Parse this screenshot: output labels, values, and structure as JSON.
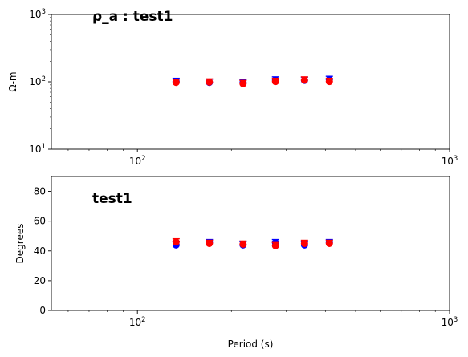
{
  "chart_data": [
    {
      "type": "scatter",
      "title": "ρ_a : test1",
      "xlabel": "",
      "ylabel": "Ω-m",
      "xscale": "log",
      "yscale": "log",
      "xlim": [
        53,
        1000
      ],
      "ylim": [
        10,
        1000
      ],
      "x_ticks": [
        {
          "value": 100,
          "base": "10",
          "exp": "2"
        },
        {
          "value": 1000,
          "base": "10",
          "exp": "3"
        }
      ],
      "y_ticks": [
        {
          "value": 10,
          "base": "10",
          "exp": "1"
        },
        {
          "value": 100,
          "base": "10",
          "exp": "2"
        },
        {
          "value": 1000,
          "base": "10",
          "exp": "3"
        }
      ],
      "series": [
        {
          "color": "#0000ff",
          "x": [
            133,
            170,
            218,
            277,
            343,
            412
          ],
          "y": [
            101,
            98,
            97,
            106,
            105,
            108
          ]
        },
        {
          "color": "#ff0000",
          "x": [
            133,
            170,
            218,
            277,
            343,
            412
          ],
          "y": [
            98,
            99,
            94,
            101,
            106,
            101
          ]
        }
      ]
    },
    {
      "type": "scatter",
      "title": "test1",
      "xlabel": "Period (s)",
      "ylabel": "Degrees",
      "xscale": "log",
      "yscale": "linear",
      "xlim": [
        53,
        1000
      ],
      "ylim": [
        0,
        90
      ],
      "x_ticks": [
        {
          "value": 100,
          "base": "10",
          "exp": "2"
        },
        {
          "value": 1000,
          "base": "10",
          "exp": "3"
        }
      ],
      "y_ticks": [
        {
          "value": 0,
          "label": "0"
        },
        {
          "value": 20,
          "label": "20"
        },
        {
          "value": 40,
          "label": "40"
        },
        {
          "value": 60,
          "label": "60"
        },
        {
          "value": 80,
          "label": "80"
        }
      ],
      "series": [
        {
          "color": "#0000ff",
          "x": [
            133,
            170,
            218,
            277,
            343,
            412
          ],
          "y": [
            44,
            45.5,
            44,
            45.5,
            44,
            45.5
          ]
        },
        {
          "color": "#ff0000",
          "x": [
            133,
            170,
            218,
            277,
            343,
            412
          ],
          "y": [
            46,
            45,
            44.5,
            43.5,
            45,
            45
          ]
        }
      ]
    }
  ]
}
